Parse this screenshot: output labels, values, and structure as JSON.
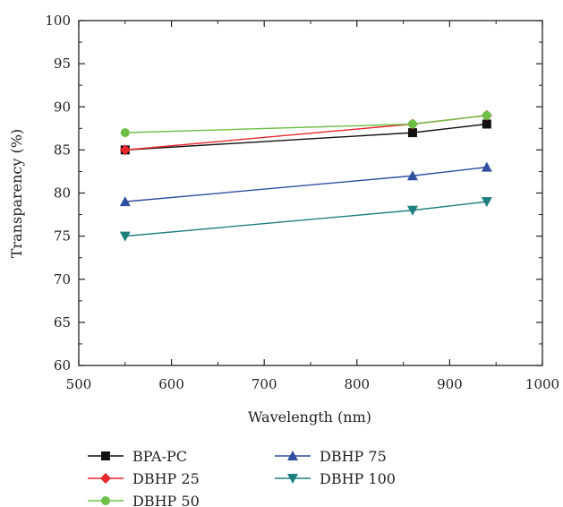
{
  "chart_data": {
    "type": "line",
    "xlabel": "Wavelength (nm)",
    "ylabel": "Transparency (%)",
    "xlim": [
      500,
      1000
    ],
    "ylim": [
      60,
      100
    ],
    "xticks": [
      500,
      600,
      700,
      800,
      900,
      1000
    ],
    "yticks": [
      60,
      65,
      70,
      75,
      80,
      85,
      90,
      95,
      100
    ],
    "grid": false,
    "legend_position": "bottom",
    "x": [
      550,
      860,
      940
    ],
    "series": [
      {
        "name": "BPA-PC",
        "values": [
          85,
          87,
          88
        ],
        "color": "#111111",
        "marker": "square"
      },
      {
        "name": "DBHP 25",
        "values": [
          85,
          88,
          89
        ],
        "color": "#e8262b",
        "marker": "diamond"
      },
      {
        "name": "DBHP 50",
        "values": [
          87,
          88,
          89
        ],
        "color": "#6dbf45",
        "marker": "circle"
      },
      {
        "name": "DBHP 75",
        "values": [
          79,
          82,
          83
        ],
        "color": "#2f4f9e",
        "marker": "triangle-up"
      },
      {
        "name": "DBHP 100",
        "values": [
          75,
          78,
          79
        ],
        "color": "#1f7f7f",
        "marker": "triangle-down"
      }
    ]
  }
}
